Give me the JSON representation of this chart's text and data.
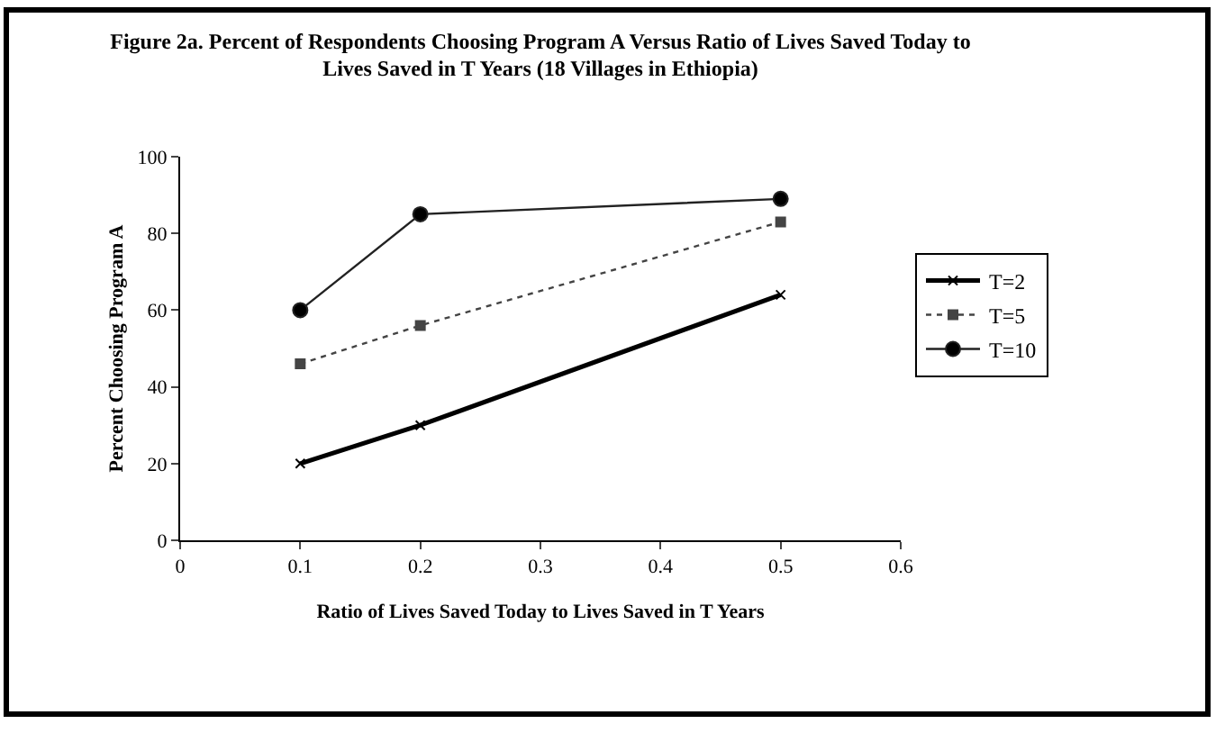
{
  "chart_data": {
    "type": "line",
    "title": "Figure 2a. Percent of Respondents Choosing Program A Versus Ratio of Lives Saved Today to Lives Saved in T Years (18 Villages in Ethiopia)",
    "xlabel": "Ratio of Lives Saved Today to Lives Saved in T Years",
    "ylabel": "Percent Choosing Program A",
    "x": [
      0.1,
      0.2,
      0.5
    ],
    "series": [
      {
        "name": "T=2",
        "color": "#000000",
        "values": [
          20,
          30,
          64
        ],
        "marker": "cross",
        "line_style": "solid"
      },
      {
        "name": "T=5",
        "color": "#444444",
        "values": [
          46,
          56,
          83
        ],
        "marker": "square",
        "line_style": "dotted"
      },
      {
        "name": "T=10",
        "color": "#222222",
        "values": [
          60,
          85,
          89
        ],
        "marker": "circle",
        "line_style": "solid"
      }
    ],
    "xlim": [
      0,
      0.6
    ],
    "xticks": [
      0,
      0.1,
      0.2,
      0.3,
      0.4,
      0.5,
      0.6
    ],
    "ylim": [
      0,
      100
    ],
    "yticks": [
      0,
      20,
      40,
      60,
      80,
      100
    ],
    "grid": false,
    "legend": "right"
  }
}
